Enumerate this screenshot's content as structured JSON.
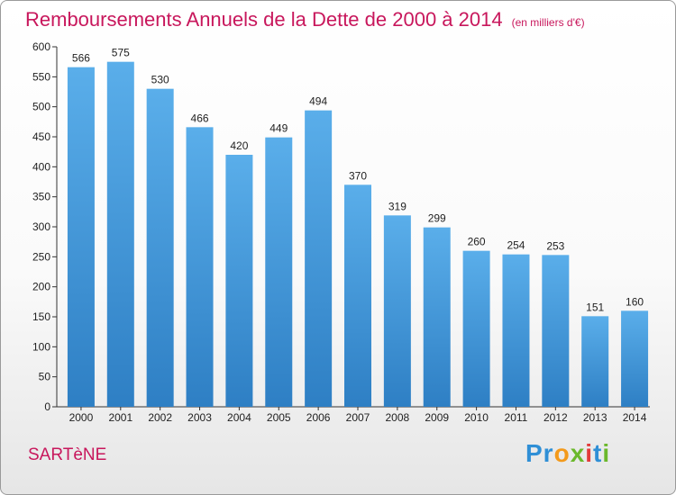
{
  "chart_data": {
    "type": "bar",
    "title": "Remboursements Annuels de la Dette de 2000 à 2014",
    "subtitle": "(en milliers d'€)",
    "categories": [
      "2000",
      "2001",
      "2002",
      "2003",
      "2004",
      "2005",
      "2006",
      "2007",
      "2008",
      "2009",
      "2010",
      "2011",
      "2012",
      "2013",
      "2014"
    ],
    "values": [
      566,
      575,
      530,
      466,
      420,
      449,
      494,
      370,
      319,
      299,
      260,
      254,
      253,
      151,
      160
    ],
    "ylim": [
      0,
      600
    ],
    "yticks": [
      0,
      50,
      100,
      150,
      200,
      250,
      300,
      350,
      400,
      450,
      500,
      550,
      600
    ],
    "grid": false,
    "bar_color": "#3f9be0"
  },
  "footer": {
    "town": "SARTèNE",
    "logo": [
      "Pr",
      "o",
      "x",
      "i",
      "t",
      "i"
    ]
  }
}
